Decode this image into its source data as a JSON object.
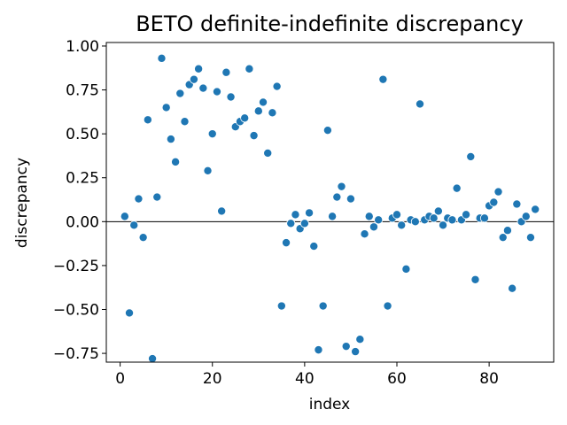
{
  "chart_data": {
    "type": "scatter",
    "title": "BETO definite-indefinite discrepancy",
    "xlabel": "index",
    "ylabel": "discrepancy",
    "xlim": [
      -3,
      94
    ],
    "ylim": [
      -0.8,
      1.02
    ],
    "xticks": [
      0,
      20,
      40,
      60,
      80
    ],
    "xtick_labels": [
      "0",
      "20",
      "40",
      "60",
      "80"
    ],
    "yticks": [
      -0.75,
      -0.5,
      -0.25,
      0.0,
      0.25,
      0.5,
      0.75,
      1.0
    ],
    "ytick_labels": [
      "−0.75",
      "−0.50",
      "−0.25",
      "0.00",
      "0.25",
      "0.50",
      "0.75",
      "1.00"
    ],
    "reference_line_y": 0.0,
    "grid": false,
    "legend": "none",
    "colors": {
      "points": "#1f77b4",
      "point_edge": "#ffffff",
      "reference_line": "#000000",
      "axes": "#000000"
    },
    "series": [
      {
        "x": [
          1,
          2,
          3,
          4,
          5,
          6,
          7,
          8,
          9,
          10,
          11,
          12,
          13,
          14,
          15,
          16,
          17,
          18,
          19,
          20,
          21,
          22,
          23,
          24,
          25,
          26,
          27,
          28,
          29,
          30,
          31,
          32,
          33,
          34,
          35,
          36,
          37,
          38,
          39,
          40,
          41,
          42,
          43,
          44,
          45,
          46,
          47,
          48,
          49,
          50,
          51,
          52,
          53,
          54,
          55,
          56,
          57,
          58,
          59,
          60,
          61,
          62,
          63,
          64,
          65,
          66,
          67,
          68,
          69,
          70,
          71,
          72,
          73,
          74,
          75,
          76,
          77,
          78,
          79,
          80,
          81,
          82,
          83,
          84,
          85,
          86,
          87,
          88,
          89,
          90
        ],
        "y": [
          0.03,
          -0.52,
          -0.02,
          0.13,
          -0.09,
          0.58,
          -0.78,
          0.14,
          0.93,
          0.65,
          0.47,
          0.34,
          0.73,
          0.57,
          0.78,
          0.81,
          0.87,
          0.76,
          0.29,
          0.5,
          0.74,
          0.06,
          0.85,
          0.71,
          0.54,
          0.57,
          0.59,
          0.87,
          0.49,
          0.63,
          0.68,
          0.39,
          0.62,
          0.77,
          -0.48,
          -0.12,
          -0.01,
          0.04,
          -0.04,
          -0.01,
          0.05,
          -0.14,
          -0.73,
          -0.48,
          0.52,
          0.03,
          0.14,
          0.2,
          -0.71,
          0.13,
          -0.74,
          -0.67,
          -0.07,
          0.03,
          -0.03,
          0.01,
          0.81,
          -0.48,
          0.02,
          0.04,
          -0.02,
          -0.27,
          0.01,
          0.0,
          0.67,
          0.01,
          0.03,
          0.02,
          0.06,
          -0.02,
          0.02,
          0.01,
          0.19,
          0.01,
          0.04,
          0.37,
          -0.33,
          0.02,
          0.02,
          0.09,
          0.11,
          0.17,
          -0.09,
          -0.05,
          -0.38,
          0.1,
          0.0,
          0.03,
          -0.09,
          0.07
        ]
      }
    ]
  }
}
